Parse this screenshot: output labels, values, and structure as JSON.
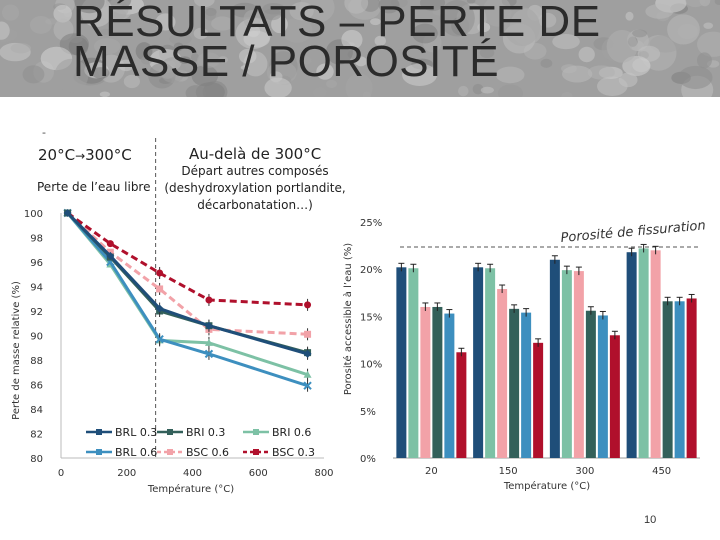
{
  "slide": {
    "title_line1": "RÉSULTATS – PERTE DE",
    "title_line2": "MASSE / POROSITÉ",
    "page_number": "10"
  },
  "annotations": {
    "dash": "-",
    "range_low": "20°C",
    "range_low_arrow": "→",
    "range_low_end": "300°C",
    "range_low_desc": "Perte de l’eau libre",
    "range_high": "Au-delà de 300°C",
    "range_high_desc_line1": "Départ autres composés",
    "range_high_desc_line2": "(deshydroxylation portlandite,",
    "range_high_desc_line3": "décarbonatation…)"
  },
  "colors": {
    "BRL 0.3": "#1f4e79",
    "BRI 0.3": "#33605a",
    "BRI 0.6": "#7dc1a5",
    "BRL 0.6": "#3d8fbf",
    "BSC 0.6": "#f2a2a8",
    "BSC 0.3": "#b0102c",
    "background_header": "#8a8a8a",
    "dashed_line": "#555555"
  },
  "chart_data": [
    {
      "type": "line",
      "xlabel": "Température (°C)",
      "ylabel": "Perte de masse relative (%)",
      "xlim": [
        0,
        800
      ],
      "ylim": [
        80,
        100
      ],
      "xticks": [
        "0",
        "200",
        "400",
        "600",
        "800"
      ],
      "yticks": [
        "80",
        "82",
        "84",
        "86",
        "88",
        "90",
        "92",
        "94",
        "96",
        "98",
        "100"
      ],
      "divider_x": 300,
      "series": [
        {
          "name": "BRL 0.3",
          "x": [
            20,
            150,
            300,
            450,
            750
          ],
          "values": [
            100,
            96.5,
            92.2,
            90.8,
            88.5
          ],
          "style": "solid",
          "marker": "diamond"
        },
        {
          "name": "BRI 0.3",
          "x": [
            20,
            150,
            300,
            450,
            750
          ],
          "values": [
            100,
            96.4,
            92.0,
            90.8,
            88.6
          ],
          "style": "solid",
          "marker": "square"
        },
        {
          "name": "BRI 0.6",
          "x": [
            20,
            150,
            300,
            450,
            750
          ],
          "values": [
            100,
            95.8,
            89.6,
            89.4,
            86.8
          ],
          "style": "solid",
          "marker": "triangle"
        },
        {
          "name": "BRL 0.6",
          "x": [
            20,
            150,
            300,
            450,
            750
          ],
          "values": [
            100,
            96.0,
            89.7,
            88.5,
            85.9
          ],
          "style": "solid",
          "marker": "x"
        },
        {
          "name": "BSC 0.6",
          "x": [
            20,
            150,
            300,
            450,
            750
          ],
          "values": [
            100,
            96.8,
            93.8,
            90.5,
            90.1
          ],
          "style": "dashed",
          "marker": "square"
        },
        {
          "name": "BSC 0.3",
          "x": [
            20,
            150,
            300,
            450,
            750
          ],
          "values": [
            100,
            97.5,
            95.1,
            92.9,
            92.5
          ],
          "style": "dashed",
          "marker": "circle"
        }
      ]
    },
    {
      "type": "bar",
      "xlabel": "Température (°C)",
      "ylabel": "Porosité accessible à l’eau (%)",
      "ylim": [
        0,
        25
      ],
      "yticks": [
        "0%",
        "5%",
        "10%",
        "15%",
        "20%",
        "25%"
      ],
      "categories": [
        "20",
        "150",
        "300",
        "450"
      ],
      "annotation": "Porosité de fissuration",
      "series": [
        {
          "name": "BRL 0.3",
          "values": [
            20.2,
            20.2,
            21.0,
            21.8
          ]
        },
        {
          "name": "BRI 0.6",
          "values": [
            20.1,
            20.1,
            19.9,
            22.2
          ]
        },
        {
          "name": "BSC 0.6",
          "values": [
            16.0,
            17.9,
            19.8,
            22.0
          ]
        },
        {
          "name": "BRI 0.3",
          "values": [
            16.0,
            15.8,
            15.6,
            16.6
          ]
        },
        {
          "name": "BRL 0.6",
          "values": [
            15.3,
            15.4,
            15.1,
            16.6
          ]
        },
        {
          "name": "BSC 0.3",
          "values": [
            11.2,
            12.2,
            13.0,
            16.9
          ]
        }
      ]
    }
  ]
}
